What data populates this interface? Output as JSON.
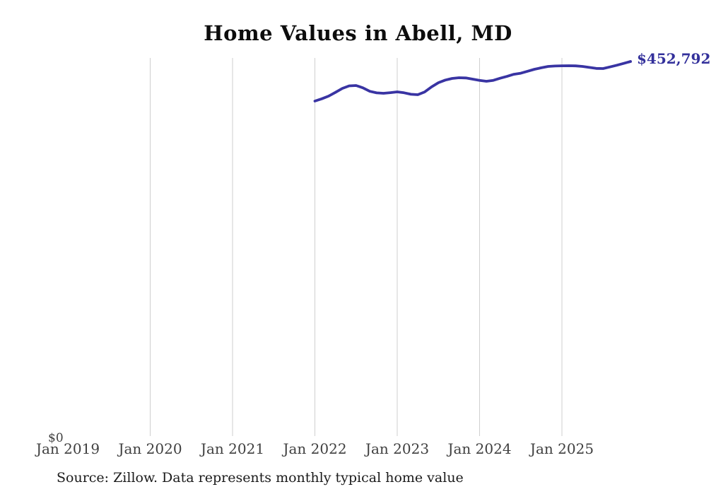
{
  "chart": {
    "title": "Home Values in Abell, MD",
    "latest_value_label": "$452,792",
    "y_axis_zero_label": "$0",
    "source_note": "Source: Zillow. Data represents monthly typical home value",
    "colors": {
      "line": "#3934a3",
      "value_label": "#33309b",
      "grid": "#cfcfcf",
      "axis_label": "#3f3f3f",
      "title": "#0d0d0d",
      "source": "#1b1b1b",
      "background": "#ffffff"
    }
  },
  "chart_data": {
    "type": "line",
    "title": "Home Values in Abell, MD",
    "legend": "none",
    "x_axis": {
      "tick_labels": [
        "Jan 2019",
        "Jan 2020",
        "Jan 2021",
        "Jan 2022",
        "Jan 2023",
        "Jan 2024",
        "Jan 2025"
      ],
      "gridlines_at": [
        "Jan 2020",
        "Jan 2021",
        "Jan 2022",
        "Jan 2023",
        "Jan 2024",
        "Jan 2025"
      ],
      "range": [
        "Jan 2019",
        "Nov 2025"
      ]
    },
    "y_axis": {
      "range": [
        0,
        460000
      ],
      "zero_label": "$0",
      "unit": "USD",
      "gridlines": false
    },
    "annotations": [
      {
        "text": "$452,792",
        "attached_to": "last_point"
      }
    ],
    "series": [
      {
        "name": "Monthly typical home value",
        "frequency": "monthly",
        "start_month": "2022-01",
        "end_month": "2025-11",
        "values": [
          405000,
          407800,
          411000,
          415500,
          420300,
          423400,
          423800,
          421000,
          416800,
          414900,
          414400,
          415200,
          416100,
          415000,
          413200,
          412700,
          416000,
          422100,
          427200,
          430400,
          432300,
          433200,
          432900,
          431500,
          429900,
          428900,
          430000,
          432600,
          434800,
          437400,
          438600,
          441000,
          443400,
          445200,
          446800,
          447300,
          447600,
          447700,
          447500,
          446800,
          445600,
          444400,
          444300,
          446200,
          448300,
          450500,
          452792
        ]
      }
    ]
  }
}
